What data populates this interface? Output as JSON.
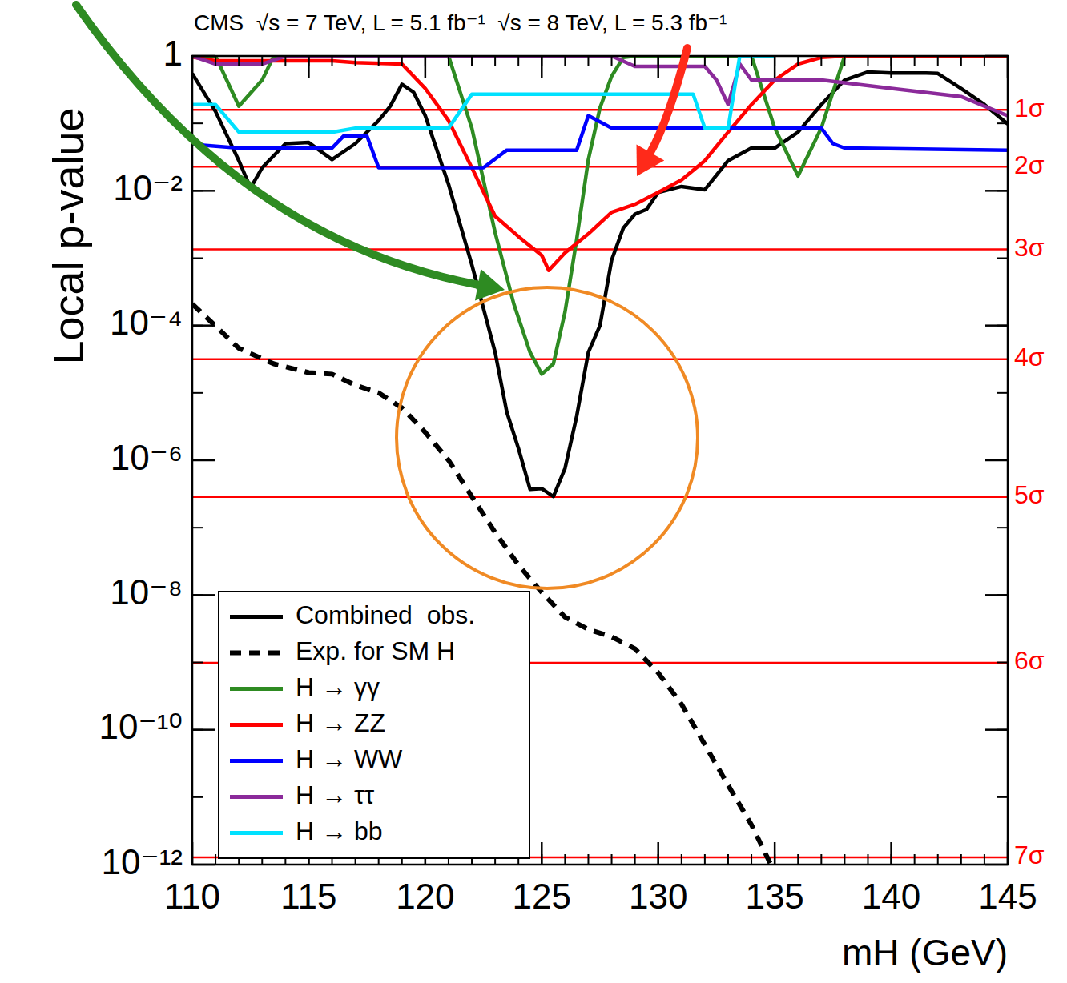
{
  "chart_data": {
    "type": "line",
    "title": "CMS  √s = 7 TeV, L = 5.1 fb⁻¹  √s = 8 TeV, L = 5.3 fb⁻¹",
    "x_label": "mH (GeV)",
    "y_label": "Local p-value",
    "log": "y",
    "grid": false,
    "legend": "lower left",
    "xlim": [
      110,
      145
    ],
    "xticks": [
      110,
      115,
      120,
      125,
      130,
      135,
      140,
      145
    ],
    "ylim": [
      1e-12,
      1
    ],
    "yticks": [
      1,
      {
        "value": 0.01,
        "label": "10⁻²"
      },
      {
        "value": 0.0001,
        "label": "10⁻⁴"
      },
      {
        "value": 1e-06,
        "label": "10⁻⁶"
      },
      {
        "value": 1e-08,
        "label": "10⁻⁸"
      },
      {
        "value": 1e-10,
        "label": "10⁻¹⁰"
      },
      {
        "value": 1e-12,
        "label": "10⁻¹²"
      }
    ],
    "reference_lines": [
      {
        "value": 0.1587,
        "label": "1σ"
      },
      {
        "value": 0.02275,
        "label": "2σ"
      },
      {
        "value": 0.00135,
        "label": "3σ"
      },
      {
        "value": 3.17e-05,
        "label": "4σ"
      },
      {
        "value": 2.87e-07,
        "label": "5σ"
      },
      {
        "value": 9.87e-10,
        "label": "6σ"
      },
      {
        "value": 1.28e-12,
        "label": "7σ"
      }
    ],
    "series": [
      {
        "name": "Combined  obs.",
        "color": "#000000",
        "line_style": "solid",
        "x": [
          110,
          111,
          112,
          112.5,
          113,
          114,
          115,
          116,
          117,
          118,
          118.5,
          119,
          119.5,
          120,
          121,
          122,
          123,
          123.5,
          124,
          124.5,
          125,
          125.5,
          126,
          126.5,
          127,
          127.5,
          128,
          128.5,
          129,
          129.5,
          130,
          131,
          132,
          133,
          134,
          135,
          136,
          137,
          138,
          139,
          140,
          141.5,
          142,
          143,
          144,
          145
        ],
        "values": [
          0.55,
          0.15,
          0.028,
          0.011,
          0.022,
          0.05,
          0.052,
          0.029,
          0.05,
          0.11,
          0.18,
          0.38,
          0.29,
          0.13,
          0.0125,
          0.0008,
          4e-05,
          5.2e-06,
          1.5e-06,
          3.7e-07,
          3.8e-07,
          2.9e-07,
          7.6e-07,
          4.5e-06,
          4e-05,
          0.0001,
          0.00094,
          0.0028,
          0.0045,
          0.0053,
          0.0095,
          0.0116,
          0.0104,
          0.028,
          0.043,
          0.043,
          0.074,
          0.19,
          0.44,
          0.58,
          0.56,
          0.56,
          0.55,
          0.33,
          0.19,
          0.098
        ]
      },
      {
        "name": "Exp. for SM H",
        "color": "#000000",
        "line_style": "dashed",
        "x": [
          110,
          112,
          113.5,
          115,
          116,
          117,
          118,
          119,
          120,
          121,
          122,
          123,
          124,
          125,
          126,
          127,
          128,
          129,
          130,
          131,
          132,
          133,
          134,
          135
        ],
        "values": [
          0.00021,
          4.6e-05,
          2.7e-05,
          2e-05,
          1.9e-05,
          1.3e-05,
          1e-05,
          6e-06,
          2.6e-06,
          1e-06,
          2.9e-07,
          8.5e-08,
          2.8e-08,
          1.1e-08,
          4.7e-09,
          3.1e-09,
          2.4e-09,
          1.6e-09,
          7e-10,
          2.4e-10,
          6e-11,
          1.5e-11,
          3.9e-12,
          7.6e-13
        ]
      },
      {
        "name": "H → γγ",
        "color": "#2e8b22",
        "line_style": "solid",
        "x": [
          110,
          111,
          112,
          113,
          113.5,
          121,
          122,
          123,
          123.8,
          124.5,
          125,
          125.5,
          126,
          126.5,
          127,
          127.5,
          128,
          128.5,
          129,
          134,
          135,
          136,
          137,
          138,
          145
        ],
        "values": [
          1,
          1,
          0.18,
          0.44,
          1,
          1,
          0.085,
          0.0024,
          0.00021,
          4e-05,
          1.9e-05,
          2.7e-05,
          0.00016,
          0.0019,
          0.029,
          0.17,
          0.5,
          0.95,
          1,
          1,
          0.085,
          0.0166,
          0.085,
          1,
          1
        ]
      },
      {
        "name": "H → ZZ",
        "color": "#ff0000",
        "line_style": "solid",
        "x": [
          110,
          111,
          116,
          117,
          119,
          120,
          121,
          122,
          123,
          124,
          125,
          125.3,
          126,
          127,
          128,
          129,
          130,
          131,
          132,
          133,
          134,
          135,
          136,
          137,
          138,
          145
        ],
        "values": [
          0.97,
          0.85,
          0.85,
          0.8,
          0.76,
          0.33,
          0.11,
          0.022,
          0.0042,
          0.0021,
          0.0011,
          0.00066,
          0.0012,
          0.0023,
          0.0048,
          0.0063,
          0.0095,
          0.0145,
          0.028,
          0.074,
          0.19,
          0.44,
          0.76,
          0.95,
          1,
          1
        ]
      },
      {
        "name": "H → WW",
        "color": "#0000ff",
        "line_style": "solid",
        "x": [
          110,
          112,
          116,
          116.5,
          117.5,
          118,
          122.5,
          123.5,
          126.5,
          127,
          128,
          137,
          137.5,
          138,
          145
        ],
        "values": [
          0.049,
          0.043,
          0.043,
          0.065,
          0.065,
          0.022,
          0.022,
          0.04,
          0.04,
          0.13,
          0.085,
          0.085,
          0.05,
          0.043,
          0.04
        ]
      },
      {
        "name": "H → ττ",
        "color": "#8b2a9a",
        "line_style": "solid",
        "x": [
          110,
          111,
          113,
          114,
          128,
          129,
          132,
          132.5,
          133,
          133.5,
          134,
          137,
          140,
          143,
          145
        ],
        "values": [
          1,
          0.76,
          0.76,
          1,
          1,
          0.7,
          0.7,
          0.44,
          0.19,
          0.76,
          0.44,
          0.44,
          0.33,
          0.25,
          0.13
        ]
      },
      {
        "name": "H → bb",
        "color": "#00e1ff",
        "line_style": "solid",
        "x": [
          110,
          111,
          112,
          116,
          117,
          121,
          122,
          131.5,
          132,
          133,
          133.5,
          135
        ],
        "values": [
          0.19,
          0.19,
          0.074,
          0.074,
          0.085,
          0.085,
          0.27,
          0.27,
          0.085,
          0.085,
          1,
          1
        ]
      }
    ]
  }
}
